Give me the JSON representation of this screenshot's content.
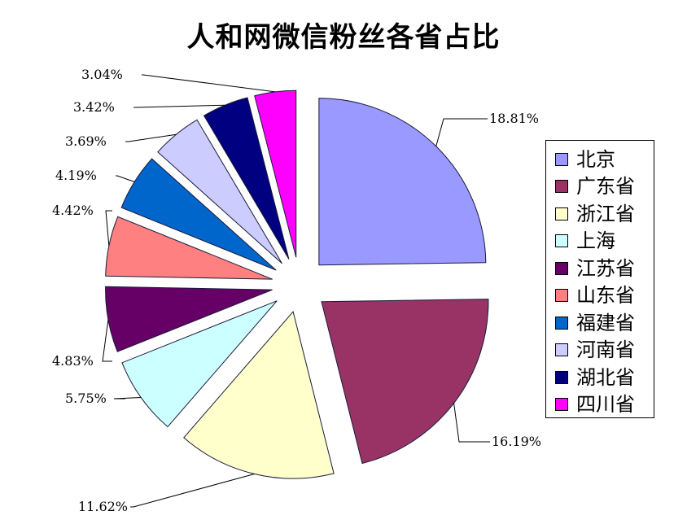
{
  "title": "人和网微信粉丝各省占比",
  "legend": {
    "items": [
      {
        "label": "北京",
        "color": "#9999FF"
      },
      {
        "label": "广东省",
        "color": "#993366"
      },
      {
        "label": "浙江省",
        "color": "#FFFFCC"
      },
      {
        "label": "上海",
        "color": "#CCFFFF"
      },
      {
        "label": "江苏省",
        "color": "#660066"
      },
      {
        "label": "山东省",
        "color": "#FF8080"
      },
      {
        "label": "福建省",
        "color": "#0066CC"
      },
      {
        "label": "河南省",
        "color": "#CCCCFF"
      },
      {
        "label": "湖北省",
        "color": "#000080"
      },
      {
        "label": "四川省",
        "color": "#FF00FF"
      }
    ]
  },
  "chart_data": {
    "type": "pie",
    "title": "人和网微信粉丝各省占比",
    "exploded": true,
    "legend_position": "right",
    "categories": [
      "北京",
      "广东省",
      "浙江省",
      "上海",
      "江苏省",
      "山东省",
      "福建省",
      "河南省",
      "湖北省",
      "四川省"
    ],
    "values": [
      18.81,
      16.19,
      11.62,
      5.75,
      4.83,
      4.42,
      4.19,
      3.69,
      3.42,
      3.04
    ],
    "data_labels": [
      "18.81%",
      "16.19%",
      "11.62%",
      "5.75%",
      "4.83%",
      "4.42%",
      "4.19%",
      "3.69%",
      "3.42%",
      "3.04%"
    ],
    "colors": [
      "#9999FF",
      "#993366",
      "#FFFFCC",
      "#CCFFFF",
      "#660066",
      "#FF8080",
      "#0066CC",
      "#CCCCFF",
      "#000080",
      "#FF00FF"
    ]
  }
}
